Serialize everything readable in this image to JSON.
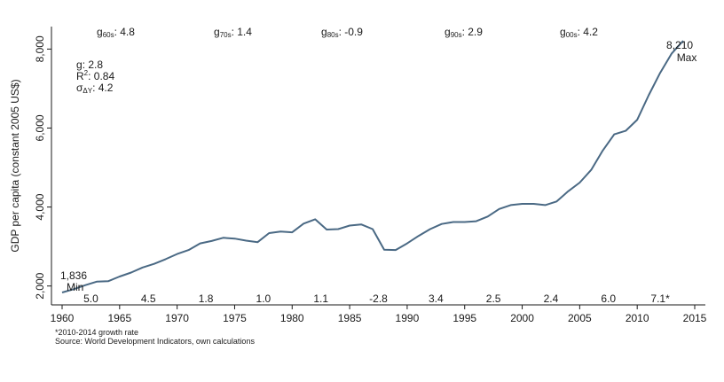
{
  "chart_data": {
    "type": "line",
    "title": "",
    "xlabel": "",
    "ylabel": "GDP per capita (constant 2005 US$)",
    "xlim": [
      1960,
      2015
    ],
    "ylim": [
      1836,
      8210
    ],
    "x_ticks": [
      1960,
      1965,
      1970,
      1975,
      1980,
      1985,
      1990,
      1995,
      2000,
      2005,
      2010,
      2015
    ],
    "y_ticks": [
      {
        "value": 2000,
        "label": "2,000"
      },
      {
        "value": 4000,
        "label": "4,000"
      },
      {
        "value": 6000,
        "label": "6,000"
      },
      {
        "value": 8000,
        "label": "8,000"
      }
    ],
    "color": "#4a6984",
    "grid": false,
    "series": [
      {
        "name": "",
        "x": [
          1960,
          1961,
          1962,
          1963,
          1964,
          1965,
          1966,
          1967,
          1968,
          1969,
          1970,
          1971,
          1972,
          1973,
          1974,
          1975,
          1976,
          1977,
          1978,
          1979,
          1980,
          1981,
          1982,
          1983,
          1984,
          1985,
          1986,
          1987,
          1988,
          1989,
          1990,
          1991,
          1992,
          1993,
          1994,
          1995,
          1996,
          1997,
          1998,
          1999,
          2000,
          2001,
          2002,
          2003,
          2004,
          2005,
          2006,
          2007,
          2008,
          2009,
          2010,
          2011,
          2012,
          2013,
          2014
        ],
        "y": [
          1836,
          1920,
          2020,
          2110,
          2120,
          2240,
          2340,
          2470,
          2560,
          2680,
          2810,
          2910,
          3080,
          3140,
          3220,
          3200,
          3150,
          3110,
          3340,
          3380,
          3360,
          3580,
          3690,
          3430,
          3440,
          3530,
          3560,
          3440,
          2920,
          2910,
          3080,
          3270,
          3440,
          3570,
          3620,
          3620,
          3640,
          3760,
          3950,
          4050,
          4080,
          4080,
          4050,
          4140,
          4400,
          4620,
          4940,
          5430,
          5840,
          5930,
          6210,
          6830,
          7400,
          7890,
          8210
        ]
      }
    ],
    "annotations": {
      "min": {
        "value": "1,836",
        "label": "Min"
      },
      "max": {
        "value": "8,210",
        "label": "Max"
      },
      "stats": [
        {
          "symbol": "g",
          "sub": "",
          "sep": ":",
          "value": "2.8"
        },
        {
          "symbol": "R",
          "sub": "",
          "sup": "2",
          "sep": ":",
          "value": "0.84"
        },
        {
          "symbol": "σ",
          "sub": "ΔY",
          "sep": ":",
          "value": "4.2"
        }
      ],
      "decade_growth": [
        {
          "sub": "60s",
          "value": "4.8"
        },
        {
          "sub": "70s",
          "value": "1.4"
        },
        {
          "sub": "80s",
          "value": "-0.9"
        },
        {
          "sub": "90s",
          "value": "2.9"
        },
        {
          "sub": "00s",
          "value": "4.2"
        }
      ],
      "five_year_growth": [
        {
          "x": 1962.5,
          "label": "5.0"
        },
        {
          "x": 1967.5,
          "label": "4.5"
        },
        {
          "x": 1972.5,
          "label": "1.8"
        },
        {
          "x": 1977.5,
          "label": "1.0"
        },
        {
          "x": 1982.5,
          "label": "1.1"
        },
        {
          "x": 1987.5,
          "label": "-2.8"
        },
        {
          "x": 1992.5,
          "label": "3.4"
        },
        {
          "x": 1997.5,
          "label": "2.5"
        },
        {
          "x": 2002.5,
          "label": "2.4"
        },
        {
          "x": 2007.5,
          "label": "6.0"
        },
        {
          "x": 2012.0,
          "label": "7.1*"
        }
      ]
    },
    "footnotes": [
      "*2010-2014 growth rate",
      "Source: World Development Indicators, own calculations"
    ]
  }
}
